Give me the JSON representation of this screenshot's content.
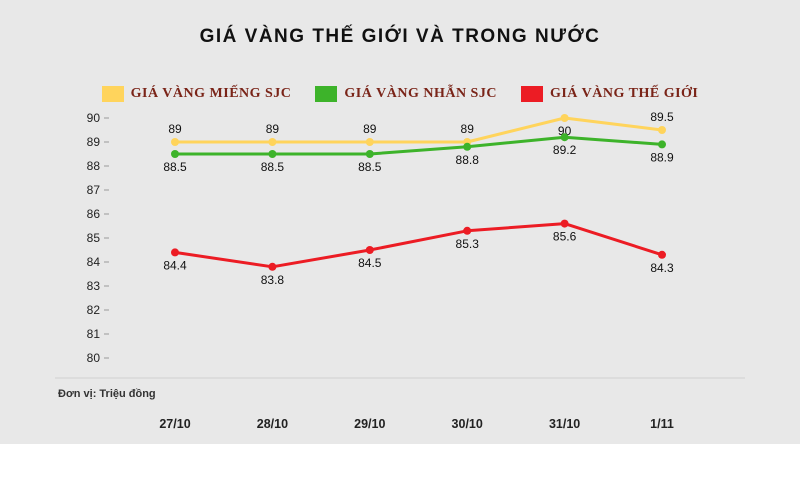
{
  "page": {
    "background": "#e8e8e8",
    "footer_background": "#ffffff"
  },
  "title": "GIÁ VÀNG THẾ GIỚI VÀ TRONG NƯỚC",
  "unit_note": "Đơn vị: Triệu đồng",
  "chart_data": {
    "type": "line",
    "categories": [
      "27/10",
      "28/10",
      "29/10",
      "30/10",
      "31/10",
      "1/11"
    ],
    "series": [
      {
        "name": "GIÁ VÀNG MIẾNG SJC",
        "color": "#FFD45C",
        "values": [
          89,
          89,
          89,
          89,
          90,
          89.5
        ],
        "label_position": [
          "above",
          "above",
          "above",
          "above",
          "below",
          "above"
        ]
      },
      {
        "name": "GIÁ VÀNG NHẪN SJC",
        "color": "#3DB32A",
        "values": [
          88.5,
          88.5,
          88.5,
          88.8,
          89.2,
          88.9
        ],
        "label_position": [
          "below",
          "below",
          "below",
          "below",
          "below",
          "below"
        ]
      },
      {
        "name": "GIÁ VÀNG THẾ GIỚI",
        "color": "#EC1C24",
        "values": [
          84.4,
          83.8,
          84.5,
          85.3,
          85.6,
          84.3
        ],
        "label_position": [
          "below",
          "below",
          "below",
          "below",
          "below",
          "below"
        ]
      }
    ],
    "ylim": [
      80,
      90
    ],
    "yticks": [
      90,
      89,
      88,
      87,
      86,
      85,
      84,
      83,
      82,
      81,
      80
    ],
    "grid": false,
    "legend_position": "top",
    "text_color": "#111111",
    "axis_text_color": "#222222",
    "separator_color": "#cfcfcf"
  }
}
